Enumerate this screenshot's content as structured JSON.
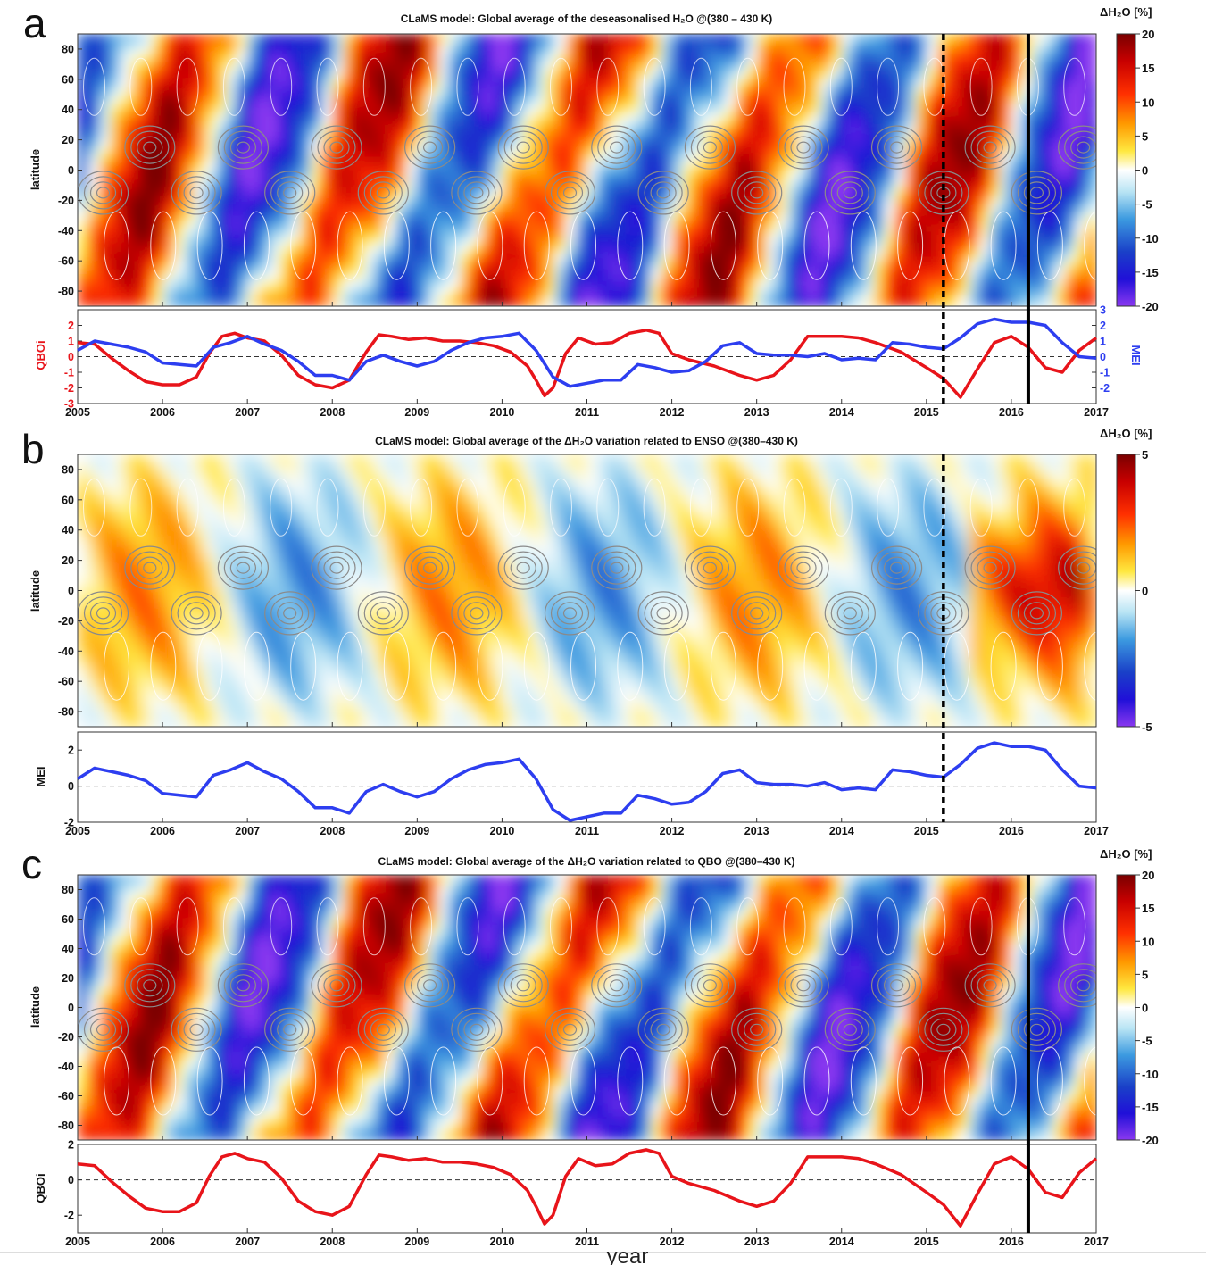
{
  "xlabel": "year",
  "panels": [
    {
      "letter": "a",
      "title": "CLaMS model: Global average of the deseasonalised H₂O @(380 – 430 K)",
      "ylabel": "latitude",
      "colorbar": {
        "label": "ΔH₂O [%]",
        "range": [
          -20,
          20
        ],
        "ticks": [
          20,
          15,
          10,
          5,
          0,
          -5,
          -10,
          -15,
          -20
        ]
      },
      "dashed_line_year": 2015.2,
      "solid_line_year": 2016.2
    },
    {
      "letter": "b",
      "title": "CLaMS model: Global average of the ΔH₂O variation related to ENSO @(380–430 K)",
      "ylabel": "latitude",
      "colorbar": {
        "label": "ΔH₂O [%]",
        "range": [
          -5,
          5
        ],
        "ticks": [
          5,
          0,
          -5
        ]
      },
      "dashed_line_year": 2015.2
    },
    {
      "letter": "c",
      "title": "CLaMS model: Global average of the ΔH₂O variation related to QBO @(380–430 K)",
      "ylabel": "latitude",
      "colorbar": {
        "label": "ΔH₂O [%]",
        "range": [
          -20,
          20
        ],
        "ticks": [
          20,
          15,
          10,
          5,
          0,
          -5,
          -10,
          -15,
          -20
        ]
      },
      "solid_line_year": 2016.2
    }
  ],
  "colors": {
    "qbo": "#e8141a",
    "mei": "#2d3ef0"
  },
  "chart_data": [
    {
      "type": "heatmap",
      "title": "CLaMS model: Global average of the deseasonalised H₂O @(380 – 430 K)",
      "xlim": [
        2005,
        2017
      ],
      "ylim": [
        -90,
        90
      ],
      "x_ticks": [
        2005,
        2006,
        2007,
        2008,
        2009,
        2010,
        2011,
        2012,
        2013,
        2014,
        2015,
        2016,
        2017
      ],
      "y_ticks": [
        80,
        60,
        40,
        20,
        0,
        -20,
        -40,
        -60,
        -80
      ],
      "ylabel": "latitude",
      "clim": [
        -20,
        20
      ]
    },
    {
      "type": "line",
      "xlim": [
        2005,
        2017
      ],
      "x_ticks": [
        2005,
        2006,
        2007,
        2008,
        2009,
        2010,
        2011,
        2012,
        2013,
        2014,
        2015,
        2016,
        2017
      ],
      "y_left": {
        "label": "QBOi",
        "ylim": [
          -3,
          3
        ],
        "ticks": [
          2,
          1,
          0,
          -1,
          -2,
          -3
        ]
      },
      "y_right": {
        "label": "MEI",
        "ylim": [
          -3,
          3
        ],
        "ticks": [
          3,
          2,
          1,
          0,
          -1,
          -2
        ]
      },
      "series": [
        {
          "name": "QBOi",
          "axis": "left",
          "x": [
            2005.0,
            2005.2,
            2005.4,
            2005.6,
            2005.8,
            2006.0,
            2006.2,
            2006.4,
            2006.55,
            2006.7,
            2006.85,
            2007.0,
            2007.2,
            2007.4,
            2007.6,
            2007.8,
            2008.0,
            2008.2,
            2008.4,
            2008.55,
            2008.7,
            2008.9,
            2009.1,
            2009.3,
            2009.5,
            2009.7,
            2009.9,
            2010.1,
            2010.3,
            2010.4,
            2010.5,
            2010.6,
            2010.75,
            2010.9,
            2011.1,
            2011.3,
            2011.5,
            2011.7,
            2011.85,
            2012.0,
            2012.2,
            2012.5,
            2012.8,
            2013.0,
            2013.2,
            2013.4,
            2013.6,
            2013.8,
            2014.0,
            2014.2,
            2014.4,
            2014.7,
            2015.0,
            2015.2,
            2015.4,
            2015.6,
            2015.8,
            2016.0,
            2016.2,
            2016.4,
            2016.6,
            2016.8,
            2017.0
          ],
          "y": [
            0.9,
            0.8,
            -0.1,
            -0.9,
            -1.6,
            -1.8,
            -1.8,
            -1.3,
            0.2,
            1.3,
            1.5,
            1.2,
            1.0,
            0.1,
            -1.2,
            -1.8,
            -2.0,
            -1.5,
            0.3,
            1.4,
            1.3,
            1.1,
            1.2,
            1.0,
            1.0,
            0.9,
            0.7,
            0.3,
            -0.6,
            -1.5,
            -2.5,
            -2.0,
            0.2,
            1.2,
            0.8,
            0.9,
            1.5,
            1.7,
            1.5,
            0.2,
            -0.2,
            -0.6,
            -1.2,
            -1.5,
            -1.2,
            -0.2,
            1.3,
            1.3,
            1.3,
            1.2,
            0.9,
            0.3,
            -0.7,
            -1.4,
            -2.6,
            -0.8,
            0.9,
            1.3,
            0.6,
            -0.7,
            -1.0,
            0.4,
            1.2
          ]
        },
        {
          "name": "MEI",
          "axis": "right",
          "x": [
            2005.0,
            2005.2,
            2005.4,
            2005.6,
            2005.8,
            2006.0,
            2006.2,
            2006.4,
            2006.6,
            2006.8,
            2007.0,
            2007.2,
            2007.4,
            2007.6,
            2007.8,
            2008.0,
            2008.2,
            2008.4,
            2008.6,
            2008.8,
            2009.0,
            2009.2,
            2009.4,
            2009.6,
            2009.8,
            2010.0,
            2010.2,
            2010.4,
            2010.6,
            2010.8,
            2011.0,
            2011.2,
            2011.4,
            2011.6,
            2011.8,
            2012.0,
            2012.2,
            2012.4,
            2012.6,
            2012.8,
            2013.0,
            2013.2,
            2013.4,
            2013.6,
            2013.8,
            2014.0,
            2014.2,
            2014.4,
            2014.6,
            2014.8,
            2015.0,
            2015.2,
            2015.4,
            2015.6,
            2015.8,
            2016.0,
            2016.2,
            2016.4,
            2016.6,
            2016.8,
            2017.0
          ],
          "y": [
            0.4,
            1.0,
            0.8,
            0.6,
            0.3,
            -0.4,
            -0.5,
            -0.6,
            0.6,
            0.9,
            1.3,
            0.8,
            0.4,
            -0.3,
            -1.2,
            -1.2,
            -1.5,
            -0.3,
            0.1,
            -0.3,
            -0.6,
            -0.3,
            0.4,
            0.9,
            1.2,
            1.3,
            1.5,
            0.4,
            -1.3,
            -1.9,
            -1.7,
            -1.5,
            -1.5,
            -0.5,
            -0.7,
            -1.0,
            -0.9,
            -0.3,
            0.7,
            0.9,
            0.2,
            0.1,
            0.1,
            0.0,
            0.2,
            -0.2,
            -0.1,
            -0.2,
            0.9,
            0.8,
            0.6,
            0.5,
            1.2,
            2.1,
            2.4,
            2.2,
            2.2,
            2.0,
            0.9,
            0.0,
            -0.1
          ]
        }
      ]
    },
    {
      "type": "heatmap",
      "title": "CLaMS model: Global average of the ΔH₂O variation related to ENSO @(380–430 K)",
      "xlim": [
        2005,
        2017
      ],
      "ylim": [
        -90,
        90
      ],
      "x_ticks": [
        2005,
        2006,
        2007,
        2008,
        2009,
        2010,
        2011,
        2012,
        2013,
        2014,
        2015,
        2016,
        2017
      ],
      "y_ticks": [
        80,
        60,
        40,
        20,
        0,
        -20,
        -40,
        -60,
        -80
      ],
      "ylabel": "latitude",
      "clim": [
        -5,
        5
      ]
    },
    {
      "type": "line",
      "xlim": [
        2005,
        2017
      ],
      "x_ticks": [
        2005,
        2006,
        2007,
        2008,
        2009,
        2010,
        2011,
        2012,
        2013,
        2014,
        2015,
        2016,
        2017
      ],
      "y_left": {
        "label": "MEI",
        "ylim": [
          -2,
          3
        ],
        "ticks": [
          2,
          0,
          -2
        ]
      },
      "series": [
        {
          "name": "MEI",
          "axis": "left",
          "x": [
            2005.0,
            2005.2,
            2005.4,
            2005.6,
            2005.8,
            2006.0,
            2006.2,
            2006.4,
            2006.6,
            2006.8,
            2007.0,
            2007.2,
            2007.4,
            2007.6,
            2007.8,
            2008.0,
            2008.2,
            2008.4,
            2008.6,
            2008.8,
            2009.0,
            2009.2,
            2009.4,
            2009.6,
            2009.8,
            2010.0,
            2010.2,
            2010.4,
            2010.6,
            2010.8,
            2011.0,
            2011.2,
            2011.4,
            2011.6,
            2011.8,
            2012.0,
            2012.2,
            2012.4,
            2012.6,
            2012.8,
            2013.0,
            2013.2,
            2013.4,
            2013.6,
            2013.8,
            2014.0,
            2014.2,
            2014.4,
            2014.6,
            2014.8,
            2015.0,
            2015.2,
            2015.4,
            2015.6,
            2015.8,
            2016.0,
            2016.2,
            2016.4,
            2016.6,
            2016.8,
            2017.0
          ],
          "y": [
            0.4,
            1.0,
            0.8,
            0.6,
            0.3,
            -0.4,
            -0.5,
            -0.6,
            0.6,
            0.9,
            1.3,
            0.8,
            0.4,
            -0.3,
            -1.2,
            -1.2,
            -1.5,
            -0.3,
            0.1,
            -0.3,
            -0.6,
            -0.3,
            0.4,
            0.9,
            1.2,
            1.3,
            1.5,
            0.4,
            -1.3,
            -1.9,
            -1.7,
            -1.5,
            -1.5,
            -0.5,
            -0.7,
            -1.0,
            -0.9,
            -0.3,
            0.7,
            0.9,
            0.2,
            0.1,
            0.1,
            0.0,
            0.2,
            -0.2,
            -0.1,
            -0.2,
            0.9,
            0.8,
            0.6,
            0.5,
            1.2,
            2.1,
            2.4,
            2.2,
            2.2,
            2.0,
            0.9,
            0.0,
            -0.1
          ]
        }
      ]
    },
    {
      "type": "heatmap",
      "title": "CLaMS model: Global average of the ΔH₂O variation related to QBO @(380–430 K)",
      "xlim": [
        2005,
        2017
      ],
      "ylim": [
        -90,
        90
      ],
      "x_ticks": [
        2005,
        2006,
        2007,
        2008,
        2009,
        2010,
        2011,
        2012,
        2013,
        2014,
        2015,
        2016,
        2017
      ],
      "y_ticks": [
        80,
        60,
        40,
        20,
        0,
        -20,
        -40,
        -60,
        -80
      ],
      "ylabel": "latitude",
      "clim": [
        -20,
        20
      ]
    },
    {
      "type": "line",
      "xlim": [
        2005,
        2017
      ],
      "x_ticks": [
        2005,
        2006,
        2007,
        2008,
        2009,
        2010,
        2011,
        2012,
        2013,
        2014,
        2015,
        2016,
        2017
      ],
      "y_left": {
        "label": "QBOi",
        "ylim": [
          -3,
          2
        ],
        "ticks": [
          2,
          0,
          -2
        ]
      },
      "series": [
        {
          "name": "QBOi",
          "axis": "left",
          "x": [
            2005.0,
            2005.2,
            2005.4,
            2005.6,
            2005.8,
            2006.0,
            2006.2,
            2006.4,
            2006.55,
            2006.7,
            2006.85,
            2007.0,
            2007.2,
            2007.4,
            2007.6,
            2007.8,
            2008.0,
            2008.2,
            2008.4,
            2008.55,
            2008.7,
            2008.9,
            2009.1,
            2009.3,
            2009.5,
            2009.7,
            2009.9,
            2010.1,
            2010.3,
            2010.4,
            2010.5,
            2010.6,
            2010.75,
            2010.9,
            2011.1,
            2011.3,
            2011.5,
            2011.7,
            2011.85,
            2012.0,
            2012.2,
            2012.5,
            2012.8,
            2013.0,
            2013.2,
            2013.4,
            2013.6,
            2013.8,
            2014.0,
            2014.2,
            2014.4,
            2014.7,
            2015.0,
            2015.2,
            2015.4,
            2015.6,
            2015.8,
            2016.0,
            2016.2,
            2016.4,
            2016.6,
            2016.8,
            2017.0
          ],
          "y": [
            0.9,
            0.8,
            -0.1,
            -0.9,
            -1.6,
            -1.8,
            -1.8,
            -1.3,
            0.2,
            1.3,
            1.5,
            1.2,
            1.0,
            0.1,
            -1.2,
            -1.8,
            -2.0,
            -1.5,
            0.3,
            1.4,
            1.3,
            1.1,
            1.2,
            1.0,
            1.0,
            0.9,
            0.7,
            0.3,
            -0.6,
            -1.5,
            -2.5,
            -2.0,
            0.2,
            1.2,
            0.8,
            0.9,
            1.5,
            1.7,
            1.5,
            0.2,
            -0.2,
            -0.6,
            -1.2,
            -1.5,
            -1.2,
            -0.2,
            1.3,
            1.3,
            1.3,
            1.2,
            0.9,
            0.3,
            -0.7,
            -1.4,
            -2.6,
            -0.8,
            0.9,
            1.3,
            0.6,
            -0.7,
            -1.0,
            0.4,
            1.2
          ]
        }
      ]
    }
  ]
}
